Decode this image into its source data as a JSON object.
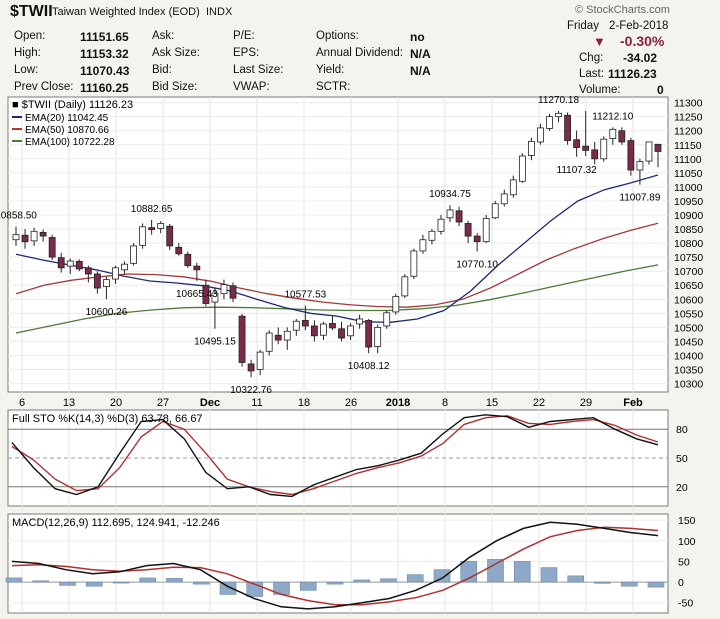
{
  "header": {
    "symbol": "$TWII",
    "name": "Taiwan Weighted Index (EOD)",
    "exchange": "INDX",
    "brand": "© StockCharts.com",
    "day": "Friday",
    "date": "2-Feb-2018",
    "pct_change": "-0.30%",
    "chg_label": "Chg:",
    "chg_value": "-34.02",
    "last_label": "Last:",
    "last_value": "11126.23",
    "volume_label": "Volume:",
    "volume_value": "0",
    "fields": [
      {
        "label": "Open:",
        "value": "11151.65"
      },
      {
        "label": "High:",
        "value": "11153.32"
      },
      {
        "label": "Low:",
        "value": "11070.43"
      },
      {
        "label": "Prev Close:",
        "value": "11160.25"
      }
    ],
    "col2": [
      "Ask:",
      "Ask Size:",
      "Bid:",
      "Bid Size:"
    ],
    "col3": [
      "P/E:",
      "EPS:",
      "Last Size:",
      "VWAP:"
    ],
    "col4": [
      {
        "label": "Options:",
        "value": "no"
      },
      {
        "label": "Annual Dividend:",
        "value": "N/A"
      },
      {
        "label": "Yield:",
        "value": "N/A"
      },
      {
        "label": "SCTR:",
        "value": ""
      }
    ]
  },
  "colors": {
    "up_candle": "#ffffff",
    "down_candle": "#7a2a4a",
    "ema20": "#1c2a6e",
    "ema50": "#a33b3b",
    "ema100": "#4e7a3a",
    "sto_k": "#111111",
    "sto_d": "#b03030",
    "macd_line": "#111111",
    "signal_line": "#b03030",
    "histogram": "#8ea9c8"
  },
  "chart_data": [
    {
      "type": "candlestick",
      "title": "$TWII (Daily) 11126.23",
      "legend": [
        "EMA(20) 11042.45",
        "EMA(50) 10870.66",
        "EMA(100) 10722.28"
      ],
      "legend_placement": "top-left",
      "x_ticks": [
        "6",
        "13",
        "20",
        "27",
        "Dec",
        "11",
        "18",
        "26",
        "2018",
        "8",
        "15",
        "22",
        "29",
        "Feb"
      ],
      "y_ticks": [
        10300,
        10350,
        10400,
        10450,
        10500,
        10550,
        10600,
        10650,
        10700,
        10750,
        10800,
        10850,
        10900,
        10950,
        11000,
        11050,
        11100,
        11150,
        11200,
        11250,
        11300
      ],
      "ylim": [
        10270,
        11320
      ],
      "annotations": [
        "10858.50",
        "10882.65",
        "10600.26",
        "10665.43",
        "10495.15",
        "10322.76",
        "10577.53",
        "10408.12",
        "10934.75",
        "10770.10",
        "11270.18",
        "11107.32",
        "11212.10",
        "11007.89"
      ],
      "ohlc": [
        [
          10812,
          10858.5,
          10790,
          10830
        ],
        [
          10828,
          10850,
          10780,
          10805
        ],
        [
          10808,
          10855,
          10790,
          10842
        ],
        [
          10838,
          10848,
          10805,
          10825
        ],
        [
          10820,
          10830,
          10740,
          10750
        ],
        [
          10748,
          10765,
          10695,
          10712
        ],
        [
          10718,
          10745,
          10690,
          10736
        ],
        [
          10735,
          10742,
          10700,
          10708
        ],
        [
          10712,
          10720,
          10660,
          10690
        ],
        [
          10690,
          10700,
          10620,
          10640
        ],
        [
          10645,
          10680,
          10600.26,
          10670
        ],
        [
          10672,
          10720,
          10655,
          10712
        ],
        [
          10705,
          10735,
          10690,
          10725
        ],
        [
          10728,
          10800,
          10720,
          10790
        ],
        [
          10792,
          10870,
          10780,
          10858
        ],
        [
          10855,
          10882.65,
          10830,
          10848
        ],
        [
          10852,
          10878,
          10835,
          10870
        ],
        [
          10860,
          10868,
          10775,
          10790
        ],
        [
          10785,
          10800,
          10755,
          10762
        ],
        [
          10760,
          10770,
          10712,
          10720
        ],
        [
          10718,
          10730,
          10665.43,
          10705
        ],
        [
          10650,
          10670,
          10575,
          10585
        ],
        [
          10590,
          10640,
          10495.15,
          10622
        ],
        [
          10620,
          10670,
          10600,
          10652
        ],
        [
          10648,
          10660,
          10590,
          10604
        ],
        [
          10540,
          10548,
          10360,
          10375
        ],
        [
          10370,
          10385,
          10322.76,
          10345
        ],
        [
          10350,
          10420,
          10330,
          10412
        ],
        [
          10415,
          10490,
          10400,
          10480
        ],
        [
          10472,
          10500,
          10440,
          10455
        ],
        [
          10455,
          10500,
          10420,
          10486
        ],
        [
          10490,
          10530,
          10470,
          10522
        ],
        [
          10525,
          10577.53,
          10490,
          10505
        ],
        [
          10505,
          10525,
          10450,
          10470
        ],
        [
          10472,
          10520,
          10455,
          10512
        ],
        [
          10514,
          10540,
          10490,
          10498
        ],
        [
          10495,
          10520,
          10450,
          10462
        ],
        [
          10470,
          10515,
          10455,
          10505
        ],
        [
          10512,
          10545,
          10495,
          10530
        ],
        [
          10525,
          10530,
          10408.12,
          10430
        ],
        [
          10432,
          10510,
          10408.12,
          10500
        ],
        [
          10505,
          10560,
          10495,
          10552
        ],
        [
          10555,
          10620,
          10545,
          10610
        ],
        [
          10612,
          10690,
          10605,
          10680
        ],
        [
          10682,
          10780,
          10672,
          10772
        ],
        [
          10772,
          10830,
          10762,
          10812
        ],
        [
          10810,
          10850,
          10795,
          10842
        ],
        [
          10842,
          10900,
          10830,
          10885
        ],
        [
          10890,
          10934.75,
          10875,
          10918
        ],
        [
          10915,
          10930,
          10860,
          10875
        ],
        [
          10870,
          10880,
          10800,
          10825
        ],
        [
          10825,
          10835,
          10770.1,
          10805
        ],
        [
          10805,
          10900,
          10800,
          10888
        ],
        [
          10890,
          10950,
          10885,
          10940
        ],
        [
          10940,
          10990,
          10930,
          10975
        ],
        [
          10972,
          11040,
          10962,
          11025
        ],
        [
          11020,
          11120,
          11015,
          11110
        ],
        [
          11112,
          11175,
          11095,
          11162
        ],
        [
          11160,
          11225,
          11150,
          11210
        ],
        [
          11208,
          11260,
          11200,
          11250
        ],
        [
          11250,
          11270.18,
          11230,
          11262
        ],
        [
          11255,
          11265,
          11150,
          11165
        ],
        [
          11168,
          11200,
          11107.32,
          11140
        ],
        [
          11145,
          11270,
          11110,
          11130
        ],
        [
          11132,
          11160,
          11080,
          11100
        ],
        [
          11100,
          11180,
          11090,
          11170
        ],
        [
          11172,
          11212.1,
          11150,
          11205
        ],
        [
          11200,
          11212.1,
          11150,
          11160
        ],
        [
          11165,
          11175,
          11040,
          11060
        ],
        [
          11060,
          11100,
          11007.89,
          11090
        ],
        [
          11092,
          11160,
          11080,
          11160
        ],
        [
          11151.65,
          11153.32,
          11070.43,
          11126.23
        ]
      ],
      "ema20": [
        10760,
        10740,
        10722,
        10705,
        10683,
        10665,
        10658,
        10648,
        10630,
        10600,
        10572,
        10550,
        10540,
        10520,
        10518,
        10530,
        10560,
        10630,
        10720,
        10800,
        10880,
        10950,
        10990,
        11015,
        11042.45
      ],
      "ema50": [
        10620,
        10650,
        10668,
        10680,
        10690,
        10688,
        10680,
        10664,
        10640,
        10620,
        10604,
        10590,
        10580,
        10574,
        10572,
        10580,
        10600,
        10640,
        10690,
        10740,
        10780,
        10815,
        10845,
        10870.66
      ],
      "ema100": [
        10480,
        10505,
        10530,
        10550,
        10562,
        10570,
        10572,
        10570,
        10566,
        10562,
        10560,
        10560,
        10566,
        10578,
        10598,
        10622,
        10648,
        10674,
        10700,
        10722.28
      ]
    },
    {
      "type": "line",
      "title": "Full STO %K(14,3) %D(3) 63.78, 66.67",
      "series": [
        {
          "name": "%K(14,3)",
          "values": [
            66,
            40,
            18,
            12,
            20,
            55,
            88,
            90,
            70,
            35,
            18,
            20,
            12,
            10,
            22,
            30,
            38,
            42,
            48,
            55,
            75,
            92,
            95,
            93,
            82,
            88,
            90,
            92,
            80,
            70,
            63.78
          ]
        },
        {
          "name": "%D(3)",
          "values": [
            62,
            48,
            28,
            16,
            18,
            40,
            72,
            88,
            80,
            55,
            28,
            20,
            15,
            12,
            18,
            26,
            34,
            40,
            45,
            52,
            65,
            85,
            92,
            94,
            86,
            85,
            88,
            90,
            84,
            74,
            66.67
          ]
        }
      ],
      "y_ticks": [
        20,
        50,
        80
      ],
      "ylim": [
        0,
        100
      ]
    },
    {
      "type": "bar",
      "title": "MACD(12,26,9) 112.695, 124.941, -12.246",
      "series": [
        {
          "name": "MACD(12,26,9)",
          "values": [
            50,
            45,
            30,
            20,
            25,
            40,
            45,
            30,
            -10,
            -40,
            -60,
            -65,
            -60,
            -50,
            -40,
            -20,
            10,
            60,
            100,
            130,
            145,
            140,
            130,
            120,
            112.695
          ]
        },
        {
          "name": "Signal",
          "values": [
            40,
            42,
            38,
            30,
            26,
            30,
            36,
            35,
            20,
            -5,
            -30,
            -45,
            -55,
            -55,
            -48,
            -38,
            -20,
            10,
            45,
            80,
            110,
            125,
            133,
            130,
            124.941
          ]
        },
        {
          "name": "Histogram",
          "values": [
            10,
            3,
            -8,
            -10,
            -1,
            10,
            9,
            -5,
            -30,
            -35,
            -30,
            -20,
            -5,
            5,
            8,
            18,
            30,
            50,
            55,
            50,
            35,
            15,
            -3,
            -10,
            -12.246
          ]
        }
      ],
      "y_ticks": [
        -50,
        0,
        50,
        100,
        150
      ],
      "ylim": [
        -75,
        165
      ]
    }
  ]
}
